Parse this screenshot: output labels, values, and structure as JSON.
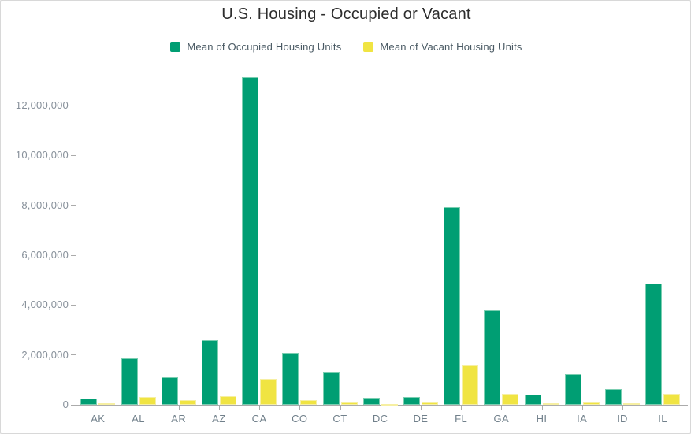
{
  "header": {
    "title": "U.S. Housing - Occupied or Vacant"
  },
  "chart_data": {
    "type": "bar",
    "title": "U.S. Housing - Occupied or Vacant",
    "categories": [
      "AK",
      "AL",
      "AR",
      "AZ",
      "CA",
      "CO",
      "CT",
      "DC",
      "DE",
      "FL",
      "GA",
      "HI",
      "IA",
      "ID",
      "IL"
    ],
    "series": [
      {
        "name": "Mean of Occupied Housing Units",
        "color": "#009e73",
        "edge_color": "#7bceb1",
        "values": [
          240000,
          1850000,
          1110000,
          2600000,
          13150000,
          2070000,
          1340000,
          270000,
          310000,
          7930000,
          3790000,
          400000,
          1230000,
          620000,
          4860000
        ]
      },
      {
        "name": "Mean of Vacant Housing Units",
        "color": "#f0e442",
        "edge_color": "#f6efa2",
        "values": [
          55000,
          320000,
          180000,
          350000,
          1050000,
          180000,
          90000,
          35000,
          80000,
          1580000,
          450000,
          55000,
          100000,
          70000,
          430000
        ]
      }
    ],
    "xlabel": "",
    "ylabel": "",
    "ylim": [
      0,
      13360000
    ],
    "y_tick_step": 2000000,
    "y_tick_labels": [
      "0",
      "2,000,000",
      "4,000,000",
      "6,000,000",
      "8,000,000",
      "10,000,000",
      "12,000,000"
    ],
    "grid": false,
    "legend_position": "top"
  }
}
